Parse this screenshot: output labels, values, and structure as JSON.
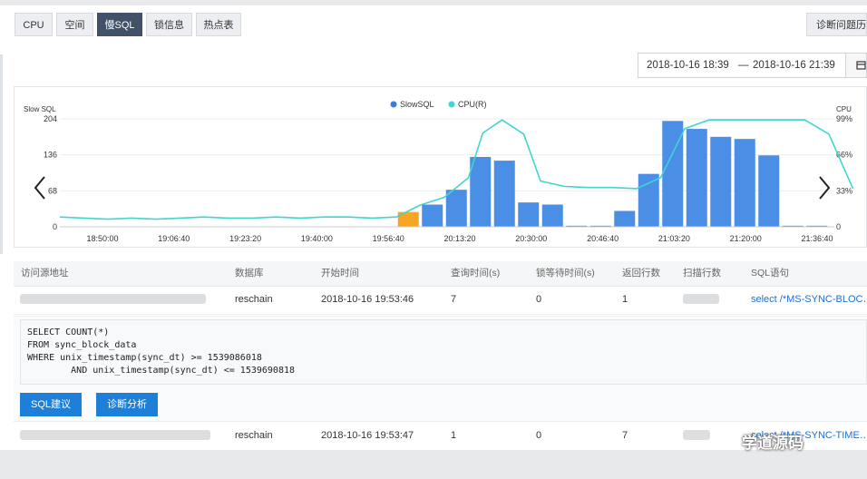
{
  "tabs": [
    {
      "label": "CPU",
      "active": false
    },
    {
      "label": "空间",
      "active": false
    },
    {
      "label": "慢SQL",
      "active": true
    },
    {
      "label": "锁信息",
      "active": false
    },
    {
      "label": "热点表",
      "active": false
    }
  ],
  "diagnose_history_label": "诊断问题历史",
  "date_range": {
    "start": "2018-10-16 18:39",
    "separator": "—",
    "end": "2018-10-16 21:39",
    "icon": "calendar-icon"
  },
  "chart_data": {
    "type": "bar",
    "legend": [
      {
        "name": "SlowSQL",
        "color": "#3b7ddd"
      },
      {
        "name": "CPU(R)",
        "color": "#3fd6d0"
      }
    ],
    "left_axis": {
      "title": "Slow SQL",
      "ticks": [
        "0",
        "68",
        "136",
        "204"
      ],
      "range": [
        0,
        204
      ]
    },
    "right_axis": {
      "title": "CPU",
      "ticks": [
        "0",
        "33%",
        "66%",
        "99%"
      ],
      "range": [
        0,
        99
      ]
    },
    "x_ticks": [
      "18:50:00",
      "19:06:40",
      "19:23:20",
      "19:40:00",
      "19:56:40",
      "20:13:20",
      "20:30:00",
      "20:46:40",
      "21:03:20",
      "21:20:00",
      "21:36:40"
    ],
    "bars": [
      {
        "x": 1,
        "value": 0
      },
      {
        "x": 2,
        "value": 0
      },
      {
        "x": 3,
        "value": 0
      },
      {
        "x": 4,
        "value": 0
      },
      {
        "x": 5,
        "value": 0
      },
      {
        "x": 6,
        "value": 0
      },
      {
        "x": 7,
        "value": 0
      },
      {
        "x": 8,
        "value": 0
      },
      {
        "x": 9,
        "value": 0
      },
      {
        "x": 10,
        "value": 0
      },
      {
        "x": 11,
        "value": 0
      },
      {
        "x": 12,
        "value": 0
      },
      {
        "x": 13,
        "value": 0
      },
      {
        "x": 14,
        "value": 0
      },
      {
        "x": 15,
        "value": 28,
        "highlight": true
      },
      {
        "x": 16,
        "value": 42
      },
      {
        "x": 17,
        "value": 70
      },
      {
        "x": 18,
        "value": 132
      },
      {
        "x": 19,
        "value": 125
      },
      {
        "x": 20,
        "value": 46
      },
      {
        "x": 21,
        "value": 42
      },
      {
        "x": 22,
        "value": 2
      },
      {
        "x": 23,
        "value": 2
      },
      {
        "x": 24,
        "value": 30
      },
      {
        "x": 25,
        "value": 100
      },
      {
        "x": 26,
        "value": 200
      },
      {
        "x": 27,
        "value": 185
      },
      {
        "x": 28,
        "value": 170
      },
      {
        "x": 29,
        "value": 166
      },
      {
        "x": 30,
        "value": 135
      },
      {
        "x": 31,
        "value": 2
      },
      {
        "x": 32,
        "value": 2
      }
    ],
    "cpu_line": [
      {
        "x": 0.0,
        "cpu": 9
      },
      {
        "x": 1.0,
        "cpu": 8
      },
      {
        "x": 2.0,
        "cpu": 7
      },
      {
        "x": 3.0,
        "cpu": 8
      },
      {
        "x": 4.0,
        "cpu": 7
      },
      {
        "x": 5.0,
        "cpu": 8
      },
      {
        "x": 6.0,
        "cpu": 9
      },
      {
        "x": 7.0,
        "cpu": 8
      },
      {
        "x": 8.0,
        "cpu": 8
      },
      {
        "x": 9.0,
        "cpu": 9
      },
      {
        "x": 10.0,
        "cpu": 8
      },
      {
        "x": 11.0,
        "cpu": 9
      },
      {
        "x": 12.0,
        "cpu": 9
      },
      {
        "x": 13.0,
        "cpu": 8
      },
      {
        "x": 14.0,
        "cpu": 9
      },
      {
        "x": 15.0,
        "cpu": 20
      },
      {
        "x": 16.0,
        "cpu": 27
      },
      {
        "x": 17.0,
        "cpu": 45
      },
      {
        "x": 17.6,
        "cpu": 86
      },
      {
        "x": 18.4,
        "cpu": 98
      },
      {
        "x": 19.3,
        "cpu": 85
      },
      {
        "x": 20.0,
        "cpu": 42
      },
      {
        "x": 21.0,
        "cpu": 37
      },
      {
        "x": 22.0,
        "cpu": 36
      },
      {
        "x": 23.0,
        "cpu": 36
      },
      {
        "x": 24.0,
        "cpu": 35
      },
      {
        "x": 25.0,
        "cpu": 45
      },
      {
        "x": 26.0,
        "cpu": 90
      },
      {
        "x": 27.0,
        "cpu": 98
      },
      {
        "x": 28.0,
        "cpu": 98
      },
      {
        "x": 29.0,
        "cpu": 98
      },
      {
        "x": 30.0,
        "cpu": 98
      },
      {
        "x": 31.0,
        "cpu": 98
      },
      {
        "x": 32.0,
        "cpu": 85
      },
      {
        "x": 33.0,
        "cpu": 35
      }
    ]
  },
  "table": {
    "headers": [
      "访问源地址",
      "数据库",
      "开始时间",
      "查询时间(s)",
      "锁等待时间(s)",
      "返回行数",
      "扫描行数",
      "SQL语句"
    ],
    "rows": [
      {
        "database": "reschain",
        "start_time": "2018-10-16 19:53:46",
        "query_time": "7",
        "lock_wait": "0",
        "rows_returned": "1",
        "sql": "select /*MS-SYNC-BLOC…"
      },
      {
        "database": "reschain",
        "start_time": "2018-10-16 19:53:47",
        "query_time": "1",
        "lock_wait": "0",
        "rows_returned": "7",
        "sql": "select /*MS-SYNC-TIME…"
      }
    ]
  },
  "sql_detail": [
    "SELECT COUNT(*)",
    "FROM sync_block_data",
    "WHERE unix_timestamp(sync_dt) >= 1539086018",
    "        AND unix_timestamp(sync_dt) <= 1539690818"
  ],
  "buttons": {
    "sql_advice": "SQL建议",
    "diagnose_analysis": "诊断分析"
  },
  "nav": {
    "prev_icon": "chevron-left-icon",
    "next_icon": "chevron-right-icon"
  },
  "watermark": "学道源码"
}
